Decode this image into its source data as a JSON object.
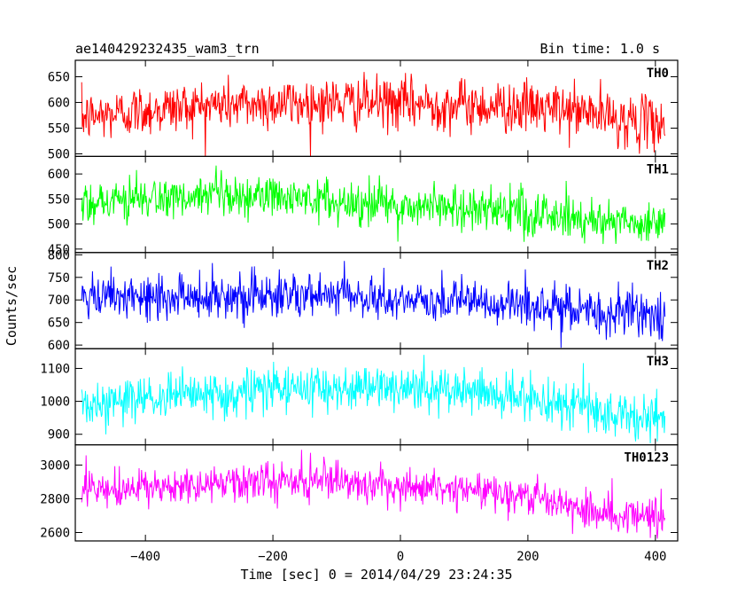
{
  "chart_data": {
    "type": "line",
    "title": "ae140429232435_wam3_trn",
    "subtitle": "Bin time: 1.0 s",
    "xlabel": "Time [sec] 0 = 2014/04/29 23:24:35",
    "ylabel": "Counts/sec",
    "xlim": [
      -510,
      435
    ],
    "x_ticks": [
      -400,
      -200,
      0,
      200,
      400
    ],
    "x_tick_labels": [
      "−400",
      "−200",
      "0",
      "200",
      "400"
    ],
    "grid": false,
    "bin_seconds": 1.0,
    "data_x_range": [
      -500,
      415
    ],
    "series": [
      {
        "name": "TH0",
        "color": "#ff0000",
        "ylim": [
          495,
          682
        ],
        "y_ticks": [
          500,
          550,
          600,
          650
        ],
        "trend_x": [
          -500,
          -400,
          -300,
          -200,
          -100,
          0,
          100,
          200,
          300,
          350,
          415
        ],
        "trend_y": [
          570,
          585,
          595,
          598,
          600,
          598,
          595,
          590,
          580,
          565,
          560
        ],
        "noise_sd": 25
      },
      {
        "name": "TH1",
        "color": "#00ff00",
        "ylim": [
          443,
          635
        ],
        "y_ticks": [
          450,
          500,
          550,
          600
        ],
        "trend_x": [
          -500,
          -400,
          -300,
          -200,
          -100,
          0,
          100,
          200,
          300,
          350,
          415
        ],
        "trend_y": [
          545,
          550,
          550,
          555,
          545,
          535,
          535,
          520,
          510,
          505,
          500
        ],
        "noise_sd": 22
      },
      {
        "name": "TH2",
        "color": "#0000ff",
        "ylim": [
          592,
          805
        ],
        "y_ticks": [
          600,
          650,
          700,
          750,
          800
        ],
        "trend_x": [
          -500,
          -400,
          -300,
          -200,
          -100,
          0,
          100,
          200,
          300,
          350,
          415
        ],
        "trend_y": [
          700,
          705,
          710,
          710,
          708,
          700,
          695,
          685,
          675,
          670,
          665
        ],
        "noise_sd": 25
      },
      {
        "name": "TH3",
        "color": "#00ffff",
        "ylim": [
          868,
          1160
        ],
        "y_ticks": [
          900,
          1000,
          1100
        ],
        "trend_x": [
          -500,
          -400,
          -300,
          -200,
          -100,
          0,
          100,
          200,
          300,
          350,
          415
        ],
        "trend_y": [
          990,
          1005,
          1020,
          1035,
          1045,
          1040,
          1030,
          1010,
          975,
          955,
          950
        ],
        "noise_sd": 35
      },
      {
        "name": "TH0123",
        "color": "#ff00ff",
        "ylim": [
          2550,
          3120
        ],
        "y_ticks": [
          2600,
          2800,
          3000
        ],
        "trend_x": [
          -500,
          -400,
          -300,
          -200,
          -100,
          0,
          100,
          200,
          300,
          350,
          415
        ],
        "trend_y": [
          2840,
          2860,
          2880,
          2900,
          2900,
          2880,
          2860,
          2820,
          2740,
          2700,
          2690
        ],
        "noise_sd": 55
      }
    ]
  }
}
